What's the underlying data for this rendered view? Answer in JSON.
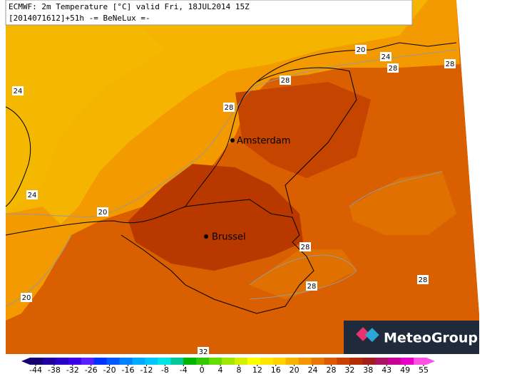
{
  "header": {
    "line1": "ECMWF: 2m Temperature [°C] valid Fri, 18JUL2014 15Z",
    "line2": "[2014071612]+51h  -= BeNeLux =-"
  },
  "cities": [
    "Amsterdam",
    "Brussel"
  ],
  "contour_labels": [
    "24",
    "24",
    "20",
    "20",
    "28",
    "28",
    "20",
    "24",
    "28",
    "28",
    "28",
    "28",
    "28",
    "32"
  ],
  "legend": {
    "ticks": [
      -44,
      -38,
      -32,
      -26,
      -20,
      -16,
      -12,
      -8,
      -4,
      0,
      4,
      8,
      12,
      16,
      20,
      24,
      28,
      32,
      38,
      43,
      49,
      55
    ],
    "colors": [
      "#14006e",
      "#1e00a0",
      "#2800c8",
      "#3c00e6",
      "#5a1eff",
      "#0032ff",
      "#005aff",
      "#0082ff",
      "#00aaff",
      "#00c8ff",
      "#00e6e6",
      "#00c896",
      "#00b400",
      "#32c800",
      "#64dc00",
      "#a0e600",
      "#d2f000",
      "#ffff00",
      "#ffe600",
      "#ffd200",
      "#f5b400",
      "#f39600",
      "#e87800",
      "#dc5a00",
      "#c84100",
      "#b42d00",
      "#a01e1e",
      "#aa1464",
      "#c80096",
      "#e600c8",
      "#ff50e6"
    ]
  },
  "logo": "MeteoGroup"
}
